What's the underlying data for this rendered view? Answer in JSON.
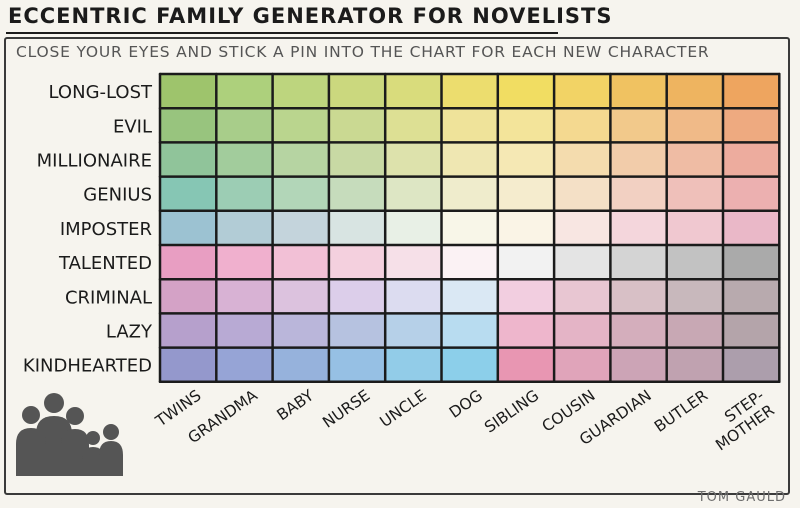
{
  "title": "ECCENTRIC FAMILY GENERATOR FOR NOVELISTS",
  "subtitle": "CLOSE YOUR EYES AND STICK A PIN INTO THE CHART FOR EACH NEW CHARACTER",
  "credit": "TOM GAULD",
  "rows": [
    "LONG-LOST",
    "EVIL",
    "MILLIONAIRE",
    "GENIUS",
    "IMPOSTER",
    "TALENTED",
    "CRIMINAL",
    "LAZY",
    "KINDHEARTED"
  ],
  "columns": [
    "TWINS",
    "GRANDMA",
    "BABY",
    "NURSE",
    "UNCLE",
    "DOG",
    "SIBLING",
    "COUSIN",
    "GUARDIAN",
    "BUTLER",
    "STEP-MOTHER"
  ],
  "cell_colors": [
    [
      "#9ec46c",
      "#add07c",
      "#bdd57e",
      "#cbd87e",
      "#d9dc7c",
      "#ecdd6e",
      "#f1dd62",
      "#f2d365",
      "#f0c261",
      "#eeb460",
      "#eea55f"
    ],
    [
      "#98c47e",
      "#a8cd8a",
      "#bad58e",
      "#cad992",
      "#dde094",
      "#efe39a",
      "#f3e49a",
      "#f4d990",
      "#f2c98b",
      "#f0ba88",
      "#eeaa80"
    ],
    [
      "#90c49a",
      "#a2cc9c",
      "#b6d4a2",
      "#c8d9a4",
      "#dde2ac",
      "#efe7b2",
      "#f5e8b4",
      "#f4dcae",
      "#f2ccaa",
      "#efbca4",
      "#edac9e"
    ],
    [
      "#86c6b4",
      "#9ccdb4",
      "#b2d6b8",
      "#c6dcbc",
      "#dde6c4",
      "#efeccc",
      "#f5ecce",
      "#f4e0c6",
      "#f2d0c2",
      "#efc0ba",
      "#ecb0b0"
    ],
    [
      "#9cc2d2",
      "#b2ccd6",
      "#c4d4dc",
      "#d8e4e2",
      "#e8f0e6",
      "#f8f6e8",
      "#faf4e6",
      "#f8e6e2",
      "#f4d6dc",
      "#f0c8d0",
      "#eab8c8"
    ],
    [
      "#e89ec2",
      "#f0b0ce",
      "#f2c0d6",
      "#f4d0de",
      "#f6e0e8",
      "#fbf2f4",
      "#f2f2f2",
      "#e4e4e4",
      "#d4d4d4",
      "#c2c2c2",
      "#aaaaaa"
    ],
    [
      "#d4a2c6",
      "#d8b2d4",
      "#dcc2de",
      "#dcceea",
      "#dcdcf0",
      "#dae8f4",
      "#f2cee0",
      "#e8c6d2",
      "#d8c0c6",
      "#c8b8bc",
      "#b8aaae"
    ],
    [
      "#b6a0cc",
      "#b8aad4",
      "#bab6da",
      "#b6c2e0",
      "#b6d0e8",
      "#b8dcf0",
      "#eeb6cc",
      "#e4b4c6",
      "#d4aebc",
      "#c8a8b4",
      "#b4a4aa"
    ],
    [
      "#9498cc",
      "#96a4d6",
      "#96b2dc",
      "#96c0e4",
      "#92cce8",
      "#8ccfea",
      "#e896b2",
      "#e0a4ba",
      "#cca4b6",
      "#c0a2b0",
      "#ac9eac"
    ]
  ],
  "icon": "family-silhouette-icon"
}
